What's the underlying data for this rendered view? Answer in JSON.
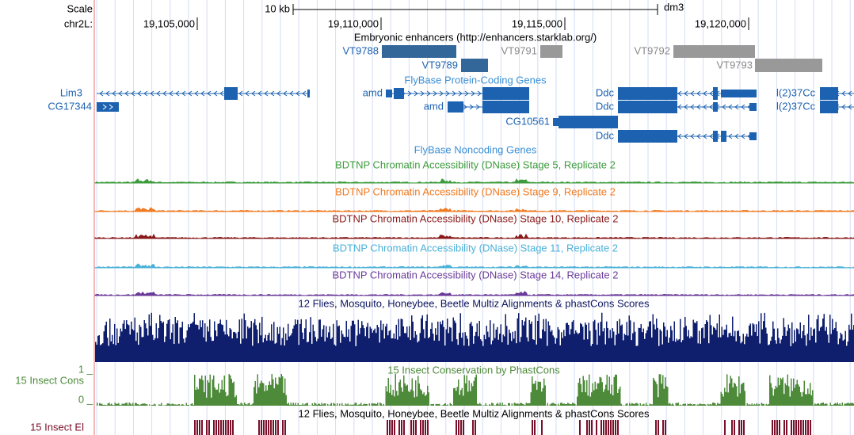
{
  "scale": {
    "label": "Scale",
    "size": "10 kb",
    "assembly": "dm3"
  },
  "ruler": {
    "chrom": "chr2L:",
    "positions": [
      "19,105,000",
      "19,110,000",
      "19,115,000",
      "19,120,000"
    ]
  },
  "tracks": {
    "enhancers": {
      "title": "Embryonic enhancers (http://enhancers.starklab.org/)",
      "items": [
        "VT9788",
        "VT9791",
        "VT9789",
        "VT9792",
        "VT9793"
      ]
    },
    "genes": {
      "title": "FlyBase Protein-Coding Genes",
      "labels": [
        "Lim3",
        "CG17344",
        "amd",
        "amd",
        "CG10561",
        "Ddc",
        "Ddc",
        "Ddc",
        "l(2)37Cc",
        "l(2)37Cc"
      ]
    },
    "noncoding": {
      "title": "FlyBase Noncoding Genes"
    },
    "dnase": [
      "BDTNP Chromatin Accessibility (DNase) Stage 5, Replicate 2",
      "BDTNP Chromatin Accessibility (DNase) Stage 9, Replicate 2",
      "BDTNP Chromatin Accessibility (DNase) Stage 10, Replicate 2",
      "BDTNP Chromatin Accessibility (DNase) Stage 11, Replicate 2",
      "BDTNP Chromatin Accessibility (DNase) Stage 14, Replicate 2"
    ],
    "multiz": {
      "title": "12 Flies, Mosquito, Honeybee, Beetle Multiz Alignments & phastCons Scores"
    },
    "cons": {
      "title": "15 Insect Conservation by PhastCons",
      "side": "15 Insect Cons",
      "top": "1 _",
      "bottom": "0 _"
    },
    "elements": {
      "side": "15 Insect El",
      "title": "12 Flies, Mosquito, Honeybee, Beetle Multiz Alignments & phastCons Scores"
    }
  }
}
